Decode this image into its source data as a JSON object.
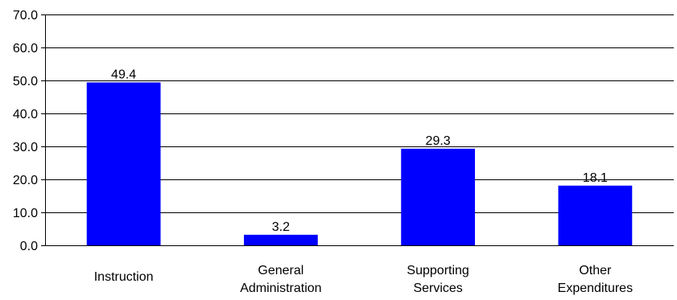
{
  "chart_data": {
    "type": "bar",
    "categories": [
      [
        "Instruction"
      ],
      [
        "General",
        "Administration"
      ],
      [
        "Supporting",
        "Services"
      ],
      [
        "Other",
        "Expenditures"
      ]
    ],
    "values": [
      49.4,
      3.2,
      29.3,
      18.1
    ],
    "value_labels": [
      "49.4",
      "3.2",
      "29.3",
      "18.1"
    ],
    "y_ticks": [
      "0.0",
      "10.0",
      "20.0",
      "30.0",
      "40.0",
      "50.0",
      "60.0",
      "70.0"
    ],
    "ylim": [
      0,
      70
    ],
    "grid": true,
    "title": "",
    "xlabel": "",
    "ylabel": "",
    "colors": {
      "bar": "#0000FF",
      "grid": "#000000",
      "text": "#000000"
    }
  }
}
